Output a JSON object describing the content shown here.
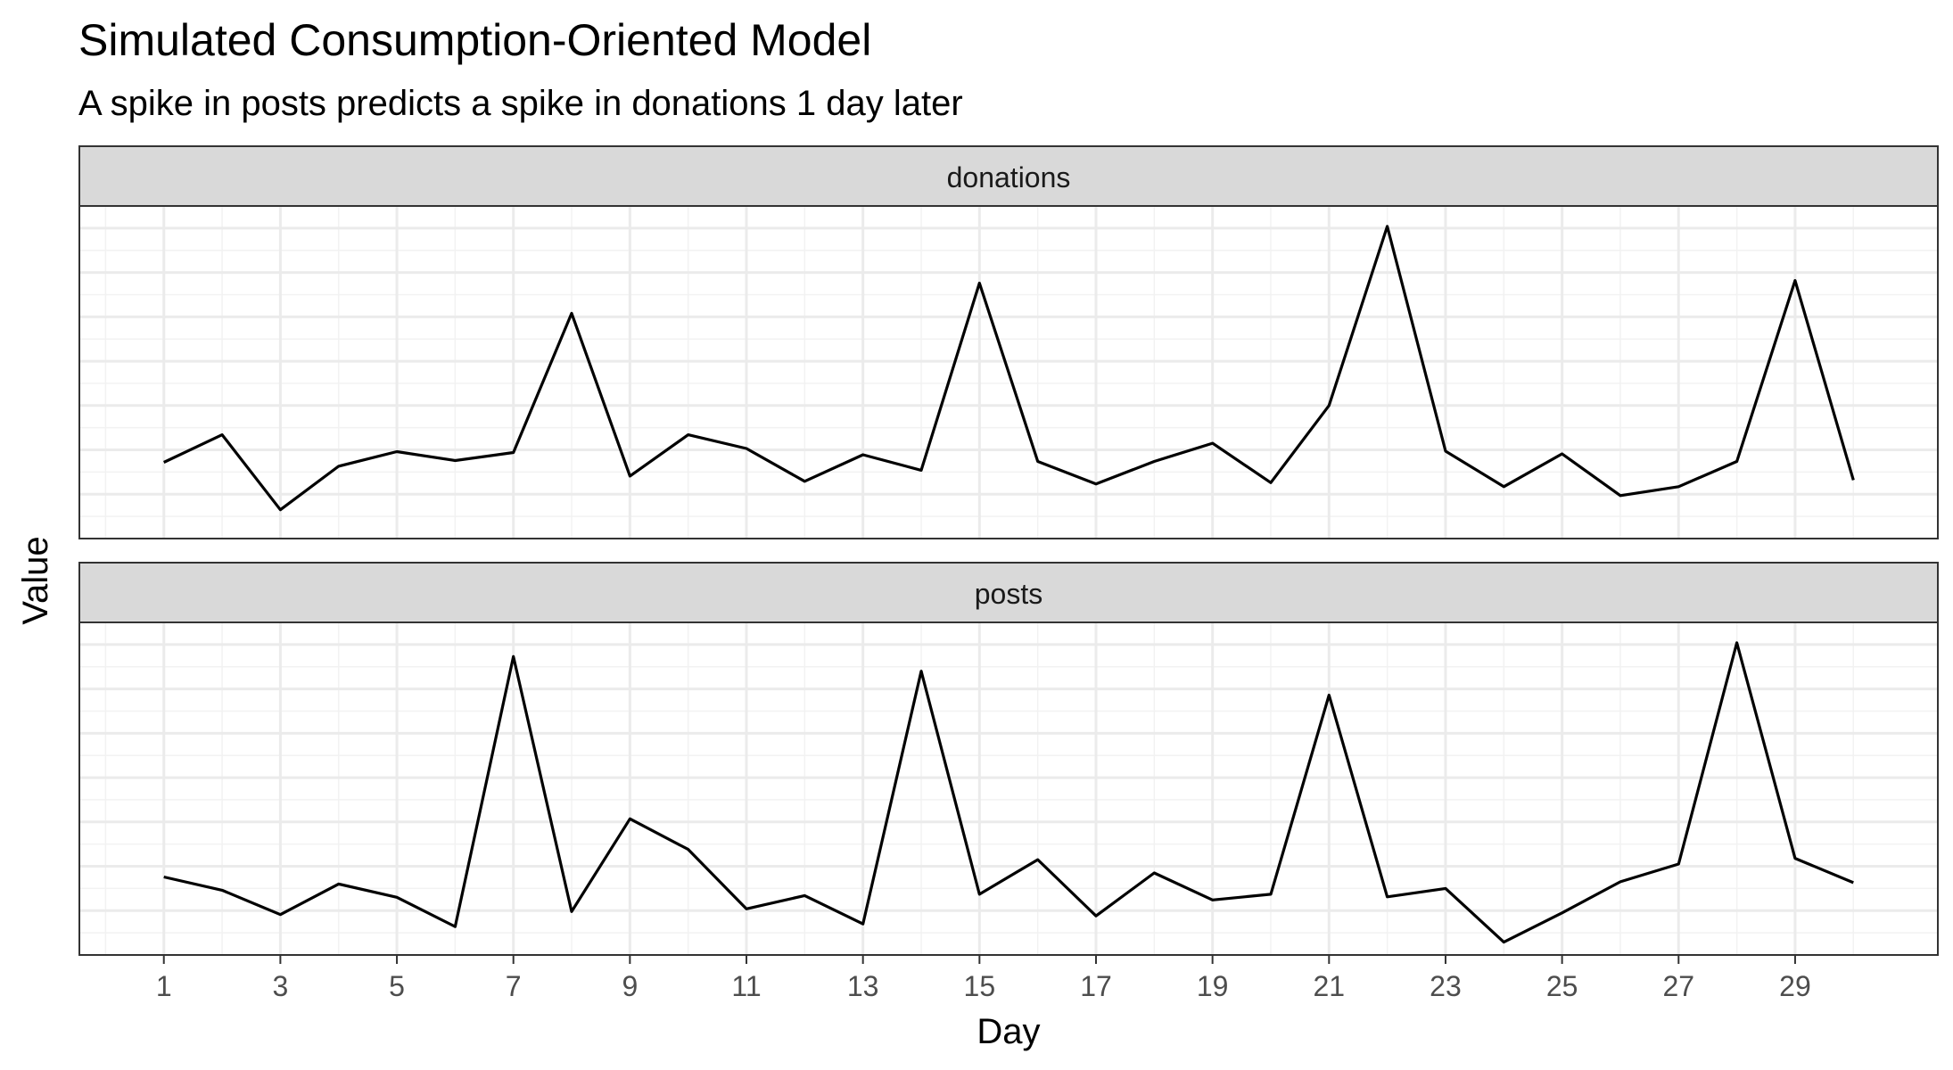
{
  "chart_data": {
    "type": "line",
    "title": "Simulated Consumption-Oriented Model",
    "subtitle": "A spike in posts predicts a spike in donations 1 day later",
    "xlabel": "Day",
    "ylabel": "Value",
    "x": [
      1,
      2,
      3,
      4,
      5,
      6,
      7,
      8,
      9,
      10,
      11,
      12,
      13,
      14,
      15,
      16,
      17,
      18,
      19,
      20,
      21,
      22,
      23,
      24,
      25,
      26,
      27,
      28,
      29,
      30
    ],
    "x_ticks": [
      "1",
      "3",
      "5",
      "7",
      "9",
      "11",
      "13",
      "15",
      "17",
      "19",
      "21",
      "23",
      "25",
      "27",
      "29"
    ],
    "x_range": [
      -0.45,
      31.45
    ],
    "y_ticks_shown": false,
    "grid": true,
    "facets": [
      {
        "name": "donations",
        "values": [
          17.2,
          23.4,
          6.5,
          16.3,
          19.6,
          17.6,
          19.4,
          50.8,
          14.1,
          23.4,
          20.3,
          12.9,
          18.9,
          15.4,
          57.6,
          17.4,
          12.3,
          17.4,
          21.5,
          12.6,
          30.0,
          70.4,
          19.7,
          11.7,
          19.1,
          9.7,
          11.7,
          17.4,
          58.2,
          13.2
        ]
      },
      {
        "name": "posts",
        "values": [
          17.6,
          14.6,
          9.1,
          16.0,
          13.0,
          6.4,
          67.3,
          9.8,
          30.7,
          23.8,
          10.4,
          13.4,
          7.0,
          64.0,
          13.7,
          21.5,
          8.8,
          18.5,
          12.4,
          13.7,
          58.6,
          13.1,
          15.0,
          2.9,
          9.5,
          16.5,
          20.5,
          70.4,
          21.8,
          16.3
        ]
      }
    ],
    "y_range": [
      0,
      75
    ]
  }
}
